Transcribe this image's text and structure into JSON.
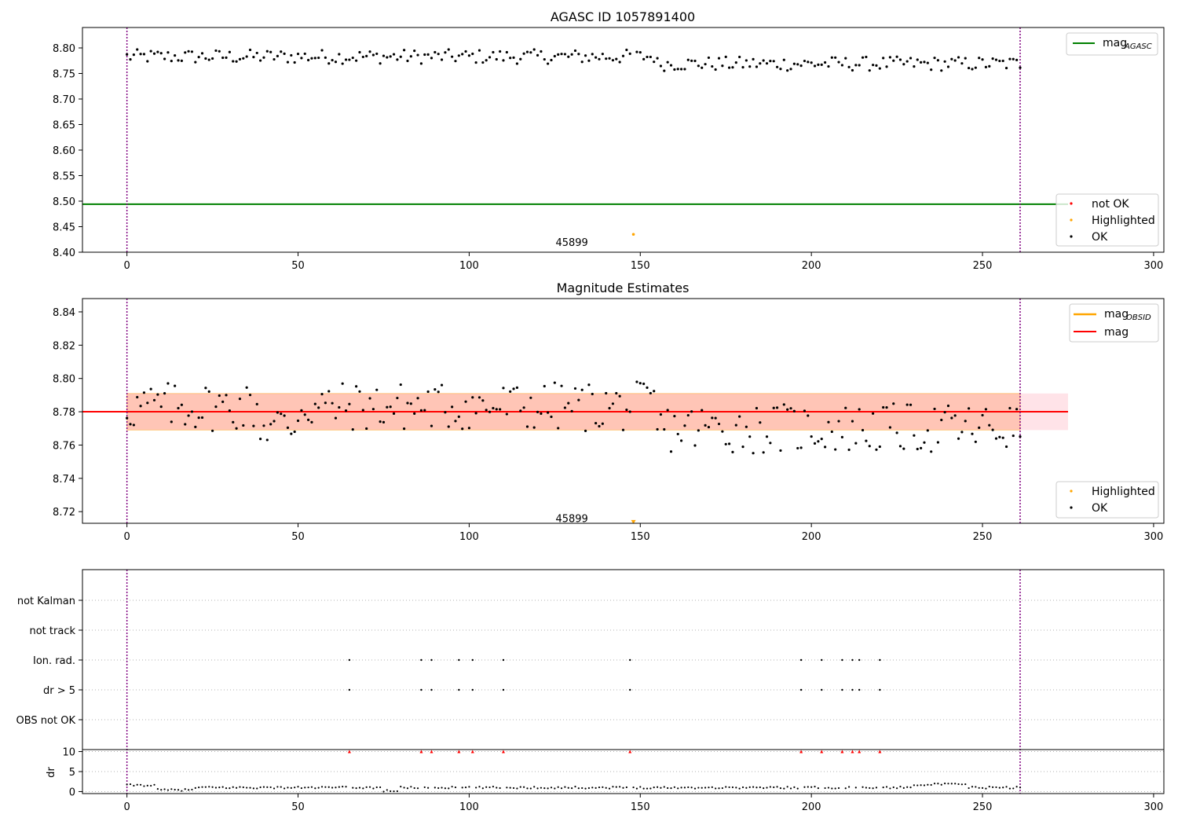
{
  "chart_data": [
    {
      "type": "scatter",
      "title": "AGASC ID 1057891400",
      "xlim": [
        -13,
        303
      ],
      "ylim": [
        8.4,
        8.84
      ],
      "xticks": [
        "0",
        "50",
        "100",
        "150",
        "200",
        "250",
        "300"
      ],
      "yticks": [
        "8.40",
        "8.45",
        "8.50",
        "8.55",
        "8.60",
        "8.65",
        "8.70",
        "8.75",
        "8.80"
      ],
      "vlines": [
        0,
        261
      ],
      "vline_color": "#800080",
      "hline": {
        "name": "mag_AGASC",
        "label_main": "mag",
        "label_sub": "AGASC",
        "y": 8.494,
        "color": "#008000"
      },
      "annotation": {
        "text": "45899",
        "x": 130,
        "y": 8.42
      },
      "legend_points": [
        {
          "label": "not OK",
          "color": "#ff0000"
        },
        {
          "label": "Highlighted",
          "color": "#ffa500"
        },
        {
          "label": "OK",
          "color": "#000000"
        }
      ],
      "highlighted": [
        {
          "x": 148,
          "y": 8.435
        }
      ]
    },
    {
      "type": "scatter",
      "title": "Magnitude Estimates",
      "xlim": [
        -13,
        303
      ],
      "ylim": [
        8.713,
        8.848
      ],
      "xticks": [
        "0",
        "50",
        "100",
        "150",
        "200",
        "250",
        "300"
      ],
      "yticks": [
        "8.72",
        "8.74",
        "8.76",
        "8.78",
        "8.80",
        "8.82",
        "8.84"
      ],
      "vlines": [
        0,
        261
      ],
      "mag_line": {
        "name": "mag",
        "y": 8.78,
        "color": "#ff0000"
      },
      "mag_obsid": {
        "label_main": "mag",
        "label_sub": "OBSID",
        "color": "#ffa500"
      },
      "band_outer": {
        "x0": 0,
        "x1": 275,
        "y0": 8.769,
        "y1": 8.791,
        "color": "#ffc0cb"
      },
      "band_inner": {
        "x0": 0,
        "x1": 261,
        "y0": 8.769,
        "y1": 8.791,
        "color": "#ffa07a"
      },
      "annotation": {
        "text": "45899",
        "x": 130,
        "y": 8.716
      },
      "legend_points": [
        {
          "label": "Highlighted",
          "color": "#ffa500"
        },
        {
          "label": "OK",
          "color": "#000000"
        }
      ],
      "highlighted": [
        {
          "x": 148,
          "y": 8.714
        }
      ]
    },
    {
      "type": "scatter",
      "xlim": [
        -13,
        303
      ],
      "xticks": [
        "0",
        "50",
        "100",
        "150",
        "200",
        "250",
        "300"
      ],
      "flag_categories": [
        "not Kalman",
        "not track",
        "Ion. rad.",
        "dr > 5",
        "OBS not OK"
      ],
      "flag_x": [
        65,
        86,
        89,
        97,
        101,
        110,
        147,
        197,
        203,
        209,
        212,
        214,
        220
      ],
      "dr_ylabel": "dr",
      "dr_yticks": [
        "0",
        "5",
        "10"
      ],
      "dr_ylim": [
        -0.5,
        10.5
      ],
      "dr_marker_color": "#ff0000"
    }
  ]
}
